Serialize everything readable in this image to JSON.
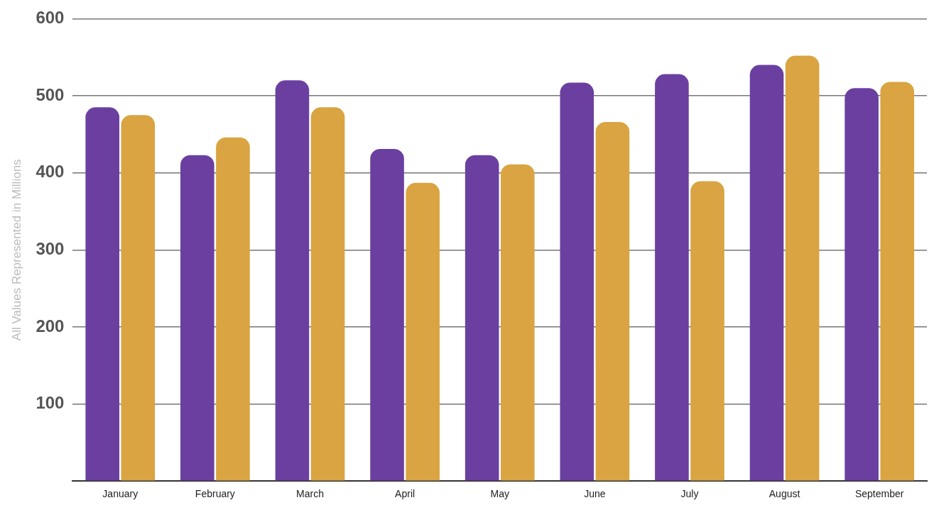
{
  "chart_data": {
    "type": "bar",
    "ylabel": "All Values Represented in Millions",
    "categories": [
      "January",
      "February",
      "March",
      "April",
      "May",
      "June",
      "July",
      "August",
      "September"
    ],
    "series": [
      {
        "color": "#6b3fa0",
        "values": [
          485,
          423,
          520,
          431,
          423,
          517,
          528,
          540,
          510
        ]
      },
      {
        "color": "#d9a441",
        "values": [
          475,
          446,
          485,
          387,
          411,
          466,
          389,
          552,
          518
        ]
      }
    ],
    "ylim": [
      0,
      600
    ],
    "yticks": [
      {
        "value": 0,
        "label": null
      },
      100,
      200,
      300,
      400,
      500,
      600
    ],
    "grid": "y",
    "legend": false
  }
}
